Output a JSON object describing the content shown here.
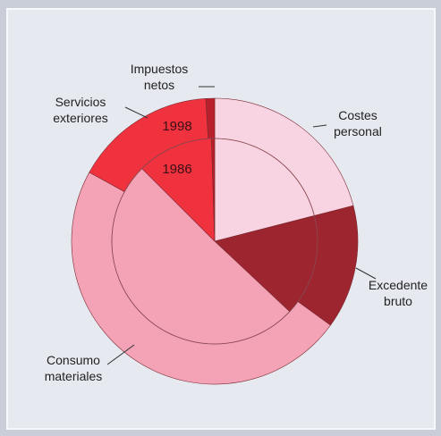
{
  "chart_data": {
    "type": "pie",
    "categories": [
      "Costes personal",
      "Excedente bruto",
      "Consumo materiales",
      "Servicios exteriores",
      "Impuestos netos"
    ],
    "colors": [
      "#f8d3e1",
      "#9c2530",
      "#f4a3b6",
      "#f0323f",
      "#b8202c"
    ],
    "series": [
      {
        "name": "1998",
        "values": [
          21,
          14,
          48,
          16,
          1
        ]
      },
      {
        "name": "1986",
        "values": [
          21,
          16,
          50.5,
          12,
          0.5
        ]
      }
    ]
  }
}
